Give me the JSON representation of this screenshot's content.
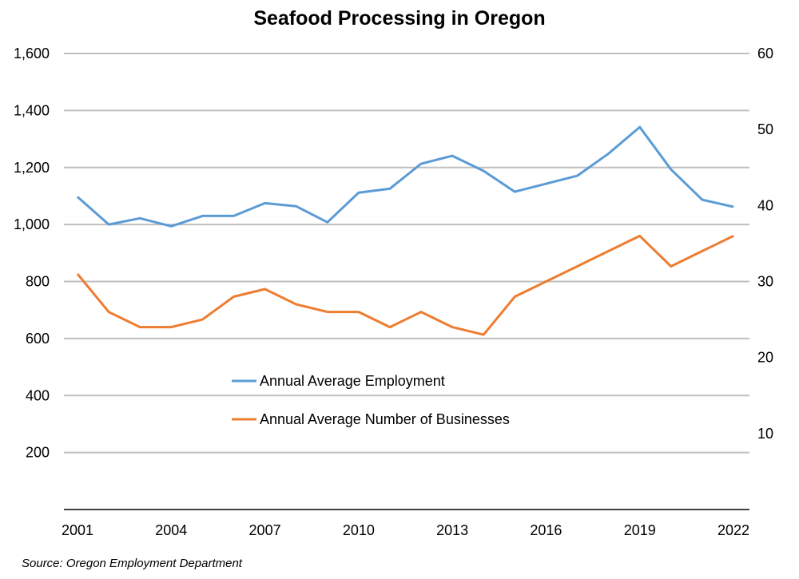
{
  "chart_data": {
    "type": "line",
    "title": "Seafood Processing in Oregon",
    "source": "Source: Oregon Employment Department",
    "x": [
      2001,
      2002,
      2003,
      2004,
      2005,
      2006,
      2007,
      2008,
      2009,
      2010,
      2011,
      2012,
      2013,
      2014,
      2015,
      2016,
      2017,
      2018,
      2019,
      2020,
      2021,
      2022
    ],
    "x_tick_labels": [
      "2001",
      "2004",
      "2007",
      "2010",
      "2013",
      "2016",
      "2019",
      "2022"
    ],
    "y_left": {
      "range": [
        0,
        1600
      ],
      "tick_labels": [
        "200",
        "400",
        "600",
        "800",
        "1,000",
        "1,200",
        "1,400",
        "1,600"
      ]
    },
    "y_right": {
      "range": [
        0,
        60
      ],
      "tick_labels": [
        "10",
        "20",
        "30",
        "40",
        "50",
        "60"
      ]
    },
    "grid": true,
    "legend_position": "center-left inside",
    "series": [
      {
        "name": "Annual Average Employment",
        "axis": "left",
        "color": "#5B9BD5",
        "values": [
          1097,
          1000,
          1022,
          994,
          1030,
          1030,
          1075,
          1064,
          1008,
          1112,
          1126,
          1213,
          1241,
          1188,
          1115,
          1143,
          1171,
          1249,
          1342,
          1193,
          1087,
          1062
        ]
      },
      {
        "name": "Annual Average Number of Businesses",
        "axis": "right",
        "color": "#ED7D31",
        "values": [
          31,
          26,
          24,
          24,
          25,
          28,
          29,
          27,
          26,
          26,
          24,
          26,
          24,
          23,
          28,
          30,
          32,
          34,
          36,
          32,
          34,
          36
        ]
      }
    ]
  }
}
